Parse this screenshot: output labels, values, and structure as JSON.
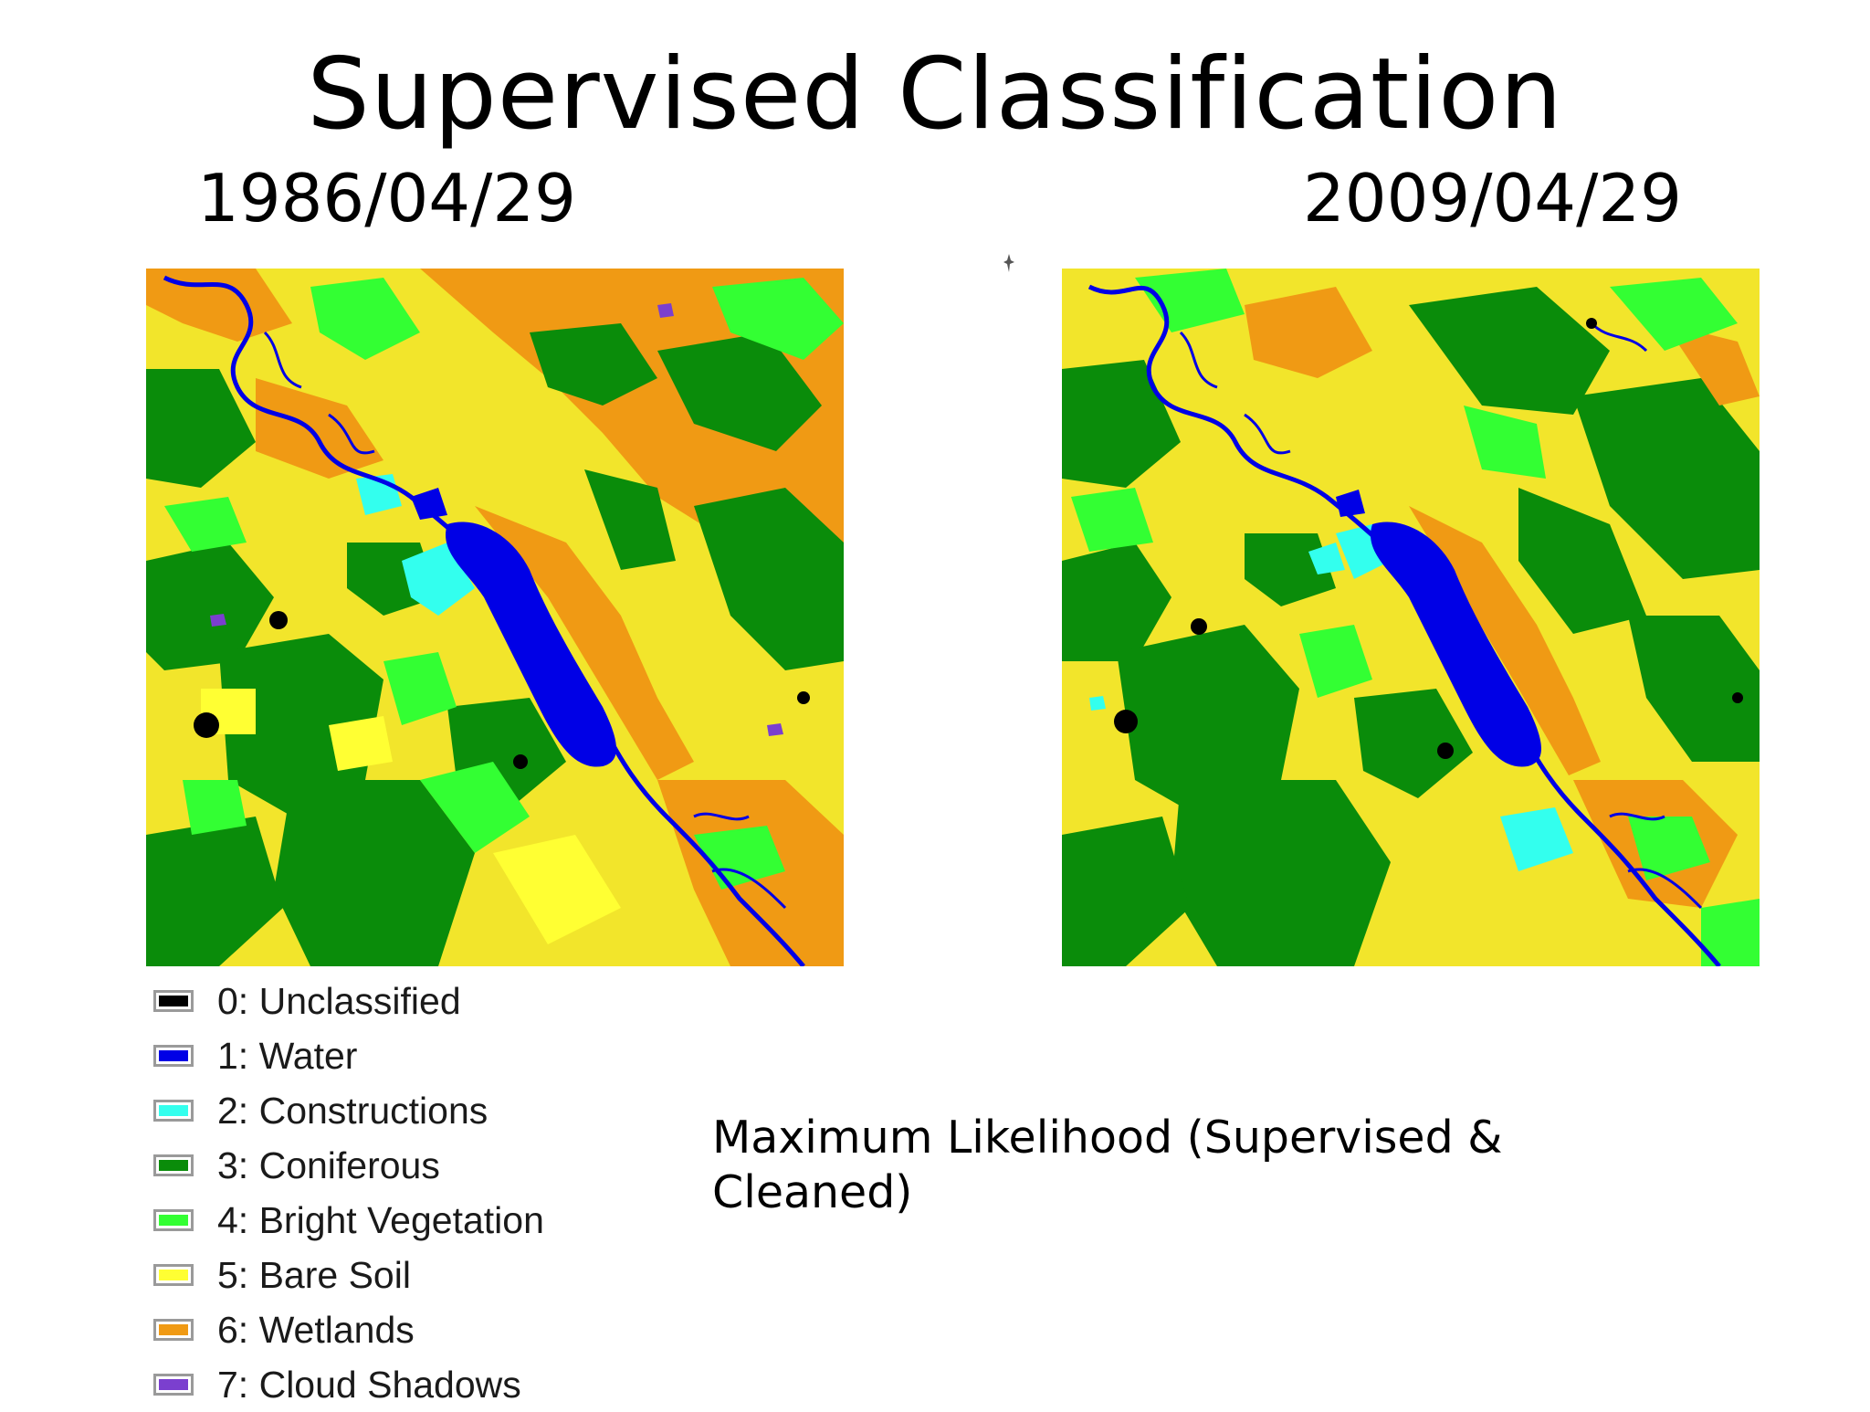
{
  "slide": {
    "title": "Supervised Classification",
    "date_left": "1986/04/29",
    "date_right": "2009/04/29",
    "caption": "Maximum Likelihood (Supervised & Cleaned)"
  },
  "legend": {
    "items": [
      {
        "label": "0: Unclassified",
        "color": "#000000"
      },
      {
        "label": "1: Water",
        "color": "#0000e6"
      },
      {
        "label": "2: Constructions",
        "color": "#33ffee"
      },
      {
        "label": "3: Coniferous",
        "color": "#0a8c0a"
      },
      {
        "label": "4: Bright Vegetation",
        "color": "#33ff33"
      },
      {
        "label": "5: Bare Soil",
        "color": "#ffff33"
      },
      {
        "label": "6: Wetlands",
        "color": "#f09a14"
      },
      {
        "label": "7: Cloud Shadows",
        "color": "#7b3fcf"
      }
    ]
  }
}
